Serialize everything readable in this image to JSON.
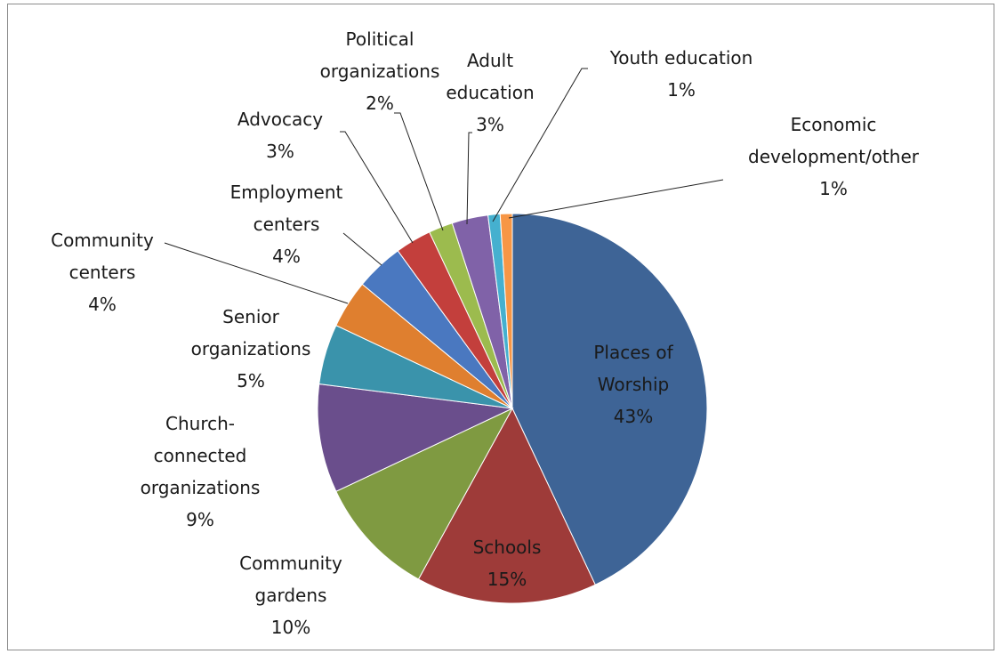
{
  "chart_data": {
    "type": "pie",
    "title": "",
    "legend": "none",
    "series": [
      {
        "values": [
          43,
          15,
          10,
          9,
          5,
          4,
          4,
          3,
          2,
          3,
          1,
          1
        ],
        "categories": [
          "Places of Worship",
          "Schools",
          "Community gardens",
          "Church-connected organizations",
          "Senior organizations",
          "Community centers",
          "Employment centers",
          "Advocacy",
          "Political organizations",
          "Adult education",
          "Youth education",
          "Economic development/other"
        ]
      }
    ],
    "slices": [
      {
        "name": "Places of Worship",
        "value": 43,
        "label_lines": [
          "Places of",
          "Worship"
        ],
        "pct": "43%",
        "color": "#3E6496"
      },
      {
        "name": "Schools",
        "value": 15,
        "label_lines": [
          "Schools"
        ],
        "pct": "15%",
        "color": "#9E3B39"
      },
      {
        "name": "Community gardens",
        "value": 10,
        "label_lines": [
          "Community",
          "gardens"
        ],
        "pct": "10%",
        "color": "#7F9A41"
      },
      {
        "name": "Church-connected organizations",
        "value": 9,
        "label_lines": [
          "Church-",
          "connected",
          "organizations"
        ],
        "pct": "9%",
        "color": "#6A4E8C"
      },
      {
        "name": "Senior organizations",
        "value": 5,
        "label_lines": [
          "Senior",
          "organizations"
        ],
        "pct": "5%",
        "color": "#3A93AB"
      },
      {
        "name": "Community centers",
        "value": 4,
        "label_lines": [
          "Community",
          "centers"
        ],
        "pct": "4%",
        "color": "#DF7F2F"
      },
      {
        "name": "Employment centers",
        "value": 4,
        "label_lines": [
          "Employment",
          "centers"
        ],
        "pct": "4%",
        "color": "#4A78C0"
      },
      {
        "name": "Advocacy",
        "value": 3,
        "label_lines": [
          "Advocacy"
        ],
        "pct": "3%",
        "color": "#C33F3C"
      },
      {
        "name": "Political organizations",
        "value": 2,
        "label_lines": [
          "Political",
          "organizations"
        ],
        "pct": "2%",
        "color": "#9CBB4E"
      },
      {
        "name": "Adult education",
        "value": 3,
        "label_lines": [
          "Adult",
          "education"
        ],
        "pct": "3%",
        "color": "#8062A8"
      },
      {
        "name": "Youth education",
        "value": 1,
        "label_lines": [
          "Youth education"
        ],
        "pct": "1%",
        "color": "#45B0CF"
      },
      {
        "name": "Economic development/other",
        "value": 1,
        "label_lines": [
          "Economic",
          "development/other"
        ],
        "pct": "1%",
        "color": "#F79645"
      }
    ]
  }
}
